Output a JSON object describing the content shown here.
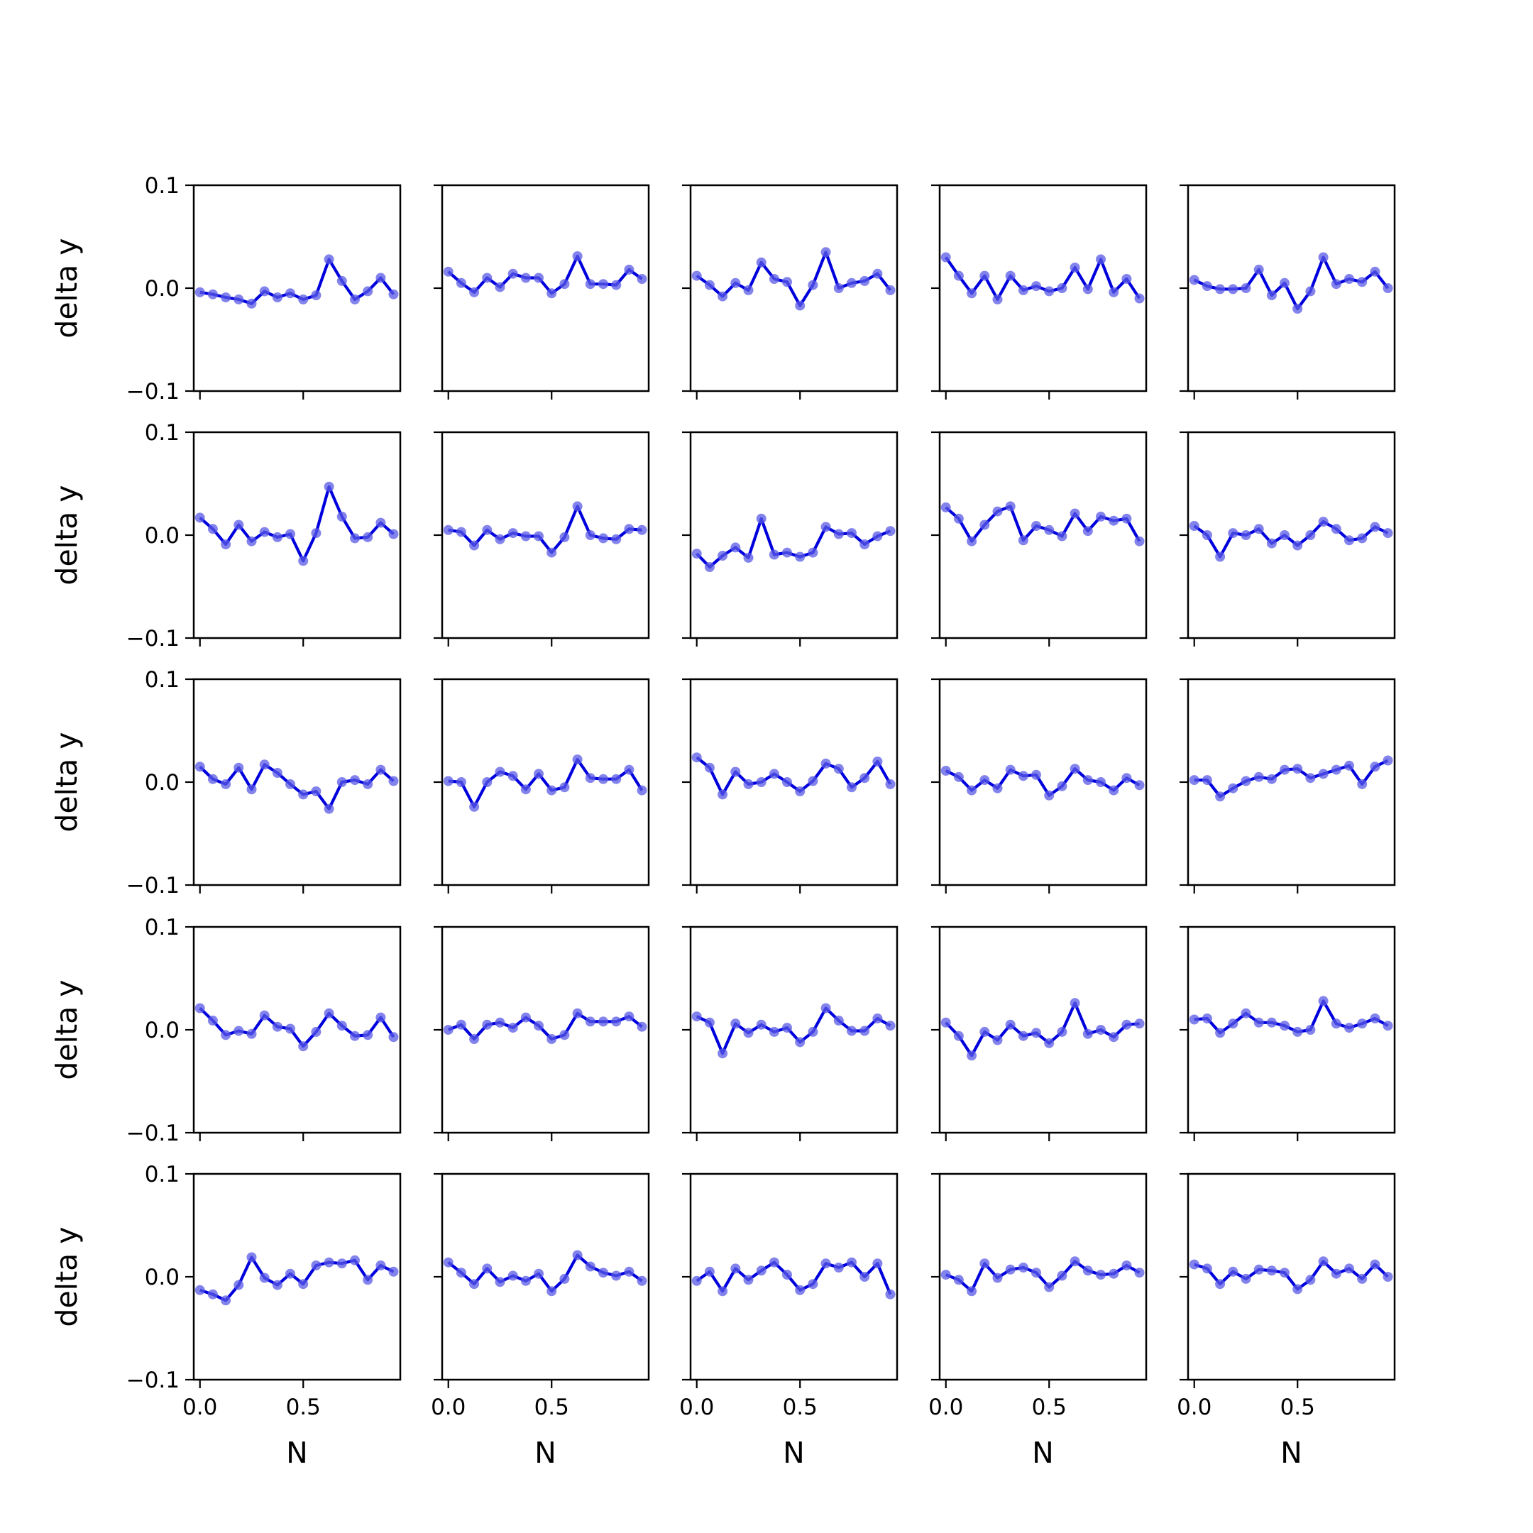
{
  "chart_data": [
    {
      "type": "line",
      "row": 0,
      "col": 0,
      "x": [
        0,
        0.0625,
        0.125,
        0.1875,
        0.25,
        0.3125,
        0.375,
        0.4375,
        0.5,
        0.5625,
        0.625,
        0.6875,
        0.75,
        0.8125,
        0.875,
        0.9375
      ],
      "values": [
        -0.004,
        -0.006,
        -0.009,
        -0.011,
        -0.015,
        -0.003,
        -0.009,
        -0.005,
        -0.011,
        -0.007,
        0.028,
        0.007,
        -0.011,
        -0.003,
        0.01,
        -0.006
      ],
      "xlim": [
        -0.03,
        0.97
      ],
      "ylim": [
        -0.1,
        0.1
      ]
    },
    {
      "type": "line",
      "row": 0,
      "col": 1,
      "x": [
        0,
        0.0625,
        0.125,
        0.1875,
        0.25,
        0.3125,
        0.375,
        0.4375,
        0.5,
        0.5625,
        0.625,
        0.6875,
        0.75,
        0.8125,
        0.875,
        0.9375
      ],
      "values": [
        0.016,
        0.005,
        -0.004,
        0.01,
        0.001,
        0.014,
        0.01,
        0.01,
        -0.005,
        0.004,
        0.031,
        0.004,
        0.004,
        0.003,
        0.018,
        0.009
      ],
      "xlim": [
        -0.03,
        0.97
      ],
      "ylim": [
        -0.1,
        0.1
      ]
    },
    {
      "type": "line",
      "row": 0,
      "col": 2,
      "x": [
        0,
        0.0625,
        0.125,
        0.1875,
        0.25,
        0.3125,
        0.375,
        0.4375,
        0.5,
        0.5625,
        0.625,
        0.6875,
        0.75,
        0.8125,
        0.875,
        0.9375
      ],
      "values": [
        0.012,
        0.003,
        -0.008,
        0.005,
        -0.002,
        0.025,
        0.009,
        0.006,
        -0.017,
        0.003,
        0.035,
        0.0,
        0.005,
        0.007,
        0.014,
        -0.002
      ],
      "xlim": [
        -0.03,
        0.97
      ],
      "ylim": [
        -0.1,
        0.1
      ]
    },
    {
      "type": "line",
      "row": 0,
      "col": 3,
      "x": [
        0,
        0.0625,
        0.125,
        0.1875,
        0.25,
        0.3125,
        0.375,
        0.4375,
        0.5,
        0.5625,
        0.625,
        0.6875,
        0.75,
        0.8125,
        0.875,
        0.9375
      ],
      "values": [
        0.03,
        0.012,
        -0.005,
        0.012,
        -0.011,
        0.012,
        -0.002,
        0.002,
        -0.003,
        0.0,
        0.02,
        -0.001,
        0.028,
        -0.004,
        0.009,
        -0.01
      ],
      "xlim": [
        -0.03,
        0.97
      ],
      "ylim": [
        -0.1,
        0.1
      ]
    },
    {
      "type": "line",
      "row": 0,
      "col": 4,
      "x": [
        0,
        0.0625,
        0.125,
        0.1875,
        0.25,
        0.3125,
        0.375,
        0.4375,
        0.5,
        0.5625,
        0.625,
        0.6875,
        0.75,
        0.8125,
        0.875,
        0.9375
      ],
      "values": [
        0.008,
        0.002,
        -0.001,
        -0.001,
        0.0,
        0.018,
        -0.007,
        0.005,
        -0.02,
        -0.003,
        0.03,
        0.004,
        0.009,
        0.006,
        0.016,
        0.0
      ],
      "xlim": [
        -0.03,
        0.97
      ],
      "ylim": [
        -0.1,
        0.1
      ]
    },
    {
      "type": "line",
      "row": 1,
      "col": 0,
      "x": [
        0,
        0.0625,
        0.125,
        0.1875,
        0.25,
        0.3125,
        0.375,
        0.4375,
        0.5,
        0.5625,
        0.625,
        0.6875,
        0.75,
        0.8125,
        0.875,
        0.9375
      ],
      "values": [
        0.017,
        0.006,
        -0.009,
        0.01,
        -0.006,
        0.003,
        -0.002,
        0.001,
        -0.025,
        0.002,
        0.047,
        0.018,
        -0.003,
        -0.002,
        0.012,
        0.001
      ],
      "xlim": [
        -0.03,
        0.97
      ],
      "ylim": [
        -0.1,
        0.1
      ]
    },
    {
      "type": "line",
      "row": 1,
      "col": 1,
      "x": [
        0,
        0.0625,
        0.125,
        0.1875,
        0.25,
        0.3125,
        0.375,
        0.4375,
        0.5,
        0.5625,
        0.625,
        0.6875,
        0.75,
        0.8125,
        0.875,
        0.9375
      ],
      "values": [
        0.005,
        0.003,
        -0.01,
        0.005,
        -0.004,
        0.002,
        -0.001,
        -0.001,
        -0.017,
        -0.002,
        0.028,
        0.0,
        -0.003,
        -0.004,
        0.006,
        0.005
      ],
      "xlim": [
        -0.03,
        0.97
      ],
      "ylim": [
        -0.1,
        0.1
      ]
    },
    {
      "type": "line",
      "row": 1,
      "col": 2,
      "x": [
        0,
        0.0625,
        0.125,
        0.1875,
        0.25,
        0.3125,
        0.375,
        0.4375,
        0.5,
        0.5625,
        0.625,
        0.6875,
        0.75,
        0.8125,
        0.875,
        0.9375
      ],
      "values": [
        -0.018,
        -0.031,
        -0.02,
        -0.012,
        -0.022,
        0.016,
        -0.019,
        -0.017,
        -0.021,
        -0.017,
        0.008,
        0.001,
        0.002,
        -0.009,
        -0.001,
        0.004
      ],
      "xlim": [
        -0.03,
        0.97
      ],
      "ylim": [
        -0.1,
        0.1
      ]
    },
    {
      "type": "line",
      "row": 1,
      "col": 3,
      "x": [
        0,
        0.0625,
        0.125,
        0.1875,
        0.25,
        0.3125,
        0.375,
        0.4375,
        0.5,
        0.5625,
        0.625,
        0.6875,
        0.75,
        0.8125,
        0.875,
        0.9375
      ],
      "values": [
        0.027,
        0.016,
        -0.006,
        0.01,
        0.023,
        0.028,
        -0.005,
        0.009,
        0.005,
        -0.001,
        0.021,
        0.004,
        0.018,
        0.014,
        0.016,
        -0.006
      ],
      "xlim": [
        -0.03,
        0.97
      ],
      "ylim": [
        -0.1,
        0.1
      ]
    },
    {
      "type": "line",
      "row": 1,
      "col": 4,
      "x": [
        0,
        0.0625,
        0.125,
        0.1875,
        0.25,
        0.3125,
        0.375,
        0.4375,
        0.5,
        0.5625,
        0.625,
        0.6875,
        0.75,
        0.8125,
        0.875,
        0.9375
      ],
      "values": [
        0.009,
        0.0,
        -0.021,
        0.002,
        0.0,
        0.006,
        -0.008,
        0.0,
        -0.01,
        0.0,
        0.013,
        0.006,
        -0.005,
        -0.003,
        0.008,
        0.002
      ],
      "xlim": [
        -0.03,
        0.97
      ],
      "ylim": [
        -0.1,
        0.1
      ]
    },
    {
      "type": "line",
      "row": 2,
      "col": 0,
      "x": [
        0,
        0.0625,
        0.125,
        0.1875,
        0.25,
        0.3125,
        0.375,
        0.4375,
        0.5,
        0.5625,
        0.625,
        0.6875,
        0.75,
        0.8125,
        0.875,
        0.9375
      ],
      "values": [
        0.015,
        0.003,
        -0.002,
        0.014,
        -0.007,
        0.017,
        0.009,
        -0.002,
        -0.012,
        -0.009,
        -0.026,
        0.0,
        0.002,
        -0.002,
        0.012,
        0.001
      ],
      "xlim": [
        -0.03,
        0.97
      ],
      "ylim": [
        -0.1,
        0.1
      ]
    },
    {
      "type": "line",
      "row": 2,
      "col": 1,
      "x": [
        0,
        0.0625,
        0.125,
        0.1875,
        0.25,
        0.3125,
        0.375,
        0.4375,
        0.5,
        0.5625,
        0.625,
        0.6875,
        0.75,
        0.8125,
        0.875,
        0.9375
      ],
      "values": [
        0.001,
        0.0,
        -0.024,
        0.0,
        0.01,
        0.006,
        -0.007,
        0.008,
        -0.008,
        -0.005,
        0.022,
        0.004,
        0.003,
        0.003,
        0.012,
        -0.008
      ],
      "xlim": [
        -0.03,
        0.97
      ],
      "ylim": [
        -0.1,
        0.1
      ]
    },
    {
      "type": "line",
      "row": 2,
      "col": 2,
      "x": [
        0,
        0.0625,
        0.125,
        0.1875,
        0.25,
        0.3125,
        0.375,
        0.4375,
        0.5,
        0.5625,
        0.625,
        0.6875,
        0.75,
        0.8125,
        0.875,
        0.9375
      ],
      "values": [
        0.024,
        0.014,
        -0.012,
        0.01,
        -0.002,
        0.0,
        0.008,
        0.0,
        -0.009,
        0.001,
        0.018,
        0.013,
        -0.005,
        0.004,
        0.02,
        -0.002
      ],
      "xlim": [
        -0.03,
        0.97
      ],
      "ylim": [
        -0.1,
        0.1
      ]
    },
    {
      "type": "line",
      "row": 2,
      "col": 3,
      "x": [
        0,
        0.0625,
        0.125,
        0.1875,
        0.25,
        0.3125,
        0.375,
        0.4375,
        0.5,
        0.5625,
        0.625,
        0.6875,
        0.75,
        0.8125,
        0.875,
        0.9375
      ],
      "values": [
        0.011,
        0.005,
        -0.008,
        0.002,
        -0.006,
        0.012,
        0.006,
        0.007,
        -0.013,
        -0.004,
        0.013,
        0.002,
        0.0,
        -0.008,
        0.004,
        -0.003
      ],
      "xlim": [
        -0.03,
        0.97
      ],
      "ylim": [
        -0.1,
        0.1
      ]
    },
    {
      "type": "line",
      "row": 2,
      "col": 4,
      "x": [
        0,
        0.0625,
        0.125,
        0.1875,
        0.25,
        0.3125,
        0.375,
        0.4375,
        0.5,
        0.5625,
        0.625,
        0.6875,
        0.75,
        0.8125,
        0.875,
        0.9375
      ],
      "values": [
        0.002,
        0.002,
        -0.014,
        -0.006,
        0.001,
        0.005,
        0.003,
        0.012,
        0.013,
        0.004,
        0.008,
        0.012,
        0.016,
        -0.002,
        0.015,
        0.021
      ],
      "xlim": [
        -0.03,
        0.97
      ],
      "ylim": [
        -0.1,
        0.1
      ]
    },
    {
      "type": "line",
      "row": 3,
      "col": 0,
      "x": [
        0,
        0.0625,
        0.125,
        0.1875,
        0.25,
        0.3125,
        0.375,
        0.4375,
        0.5,
        0.5625,
        0.625,
        0.6875,
        0.75,
        0.8125,
        0.875,
        0.9375
      ],
      "values": [
        0.021,
        0.009,
        -0.005,
        -0.001,
        -0.004,
        0.014,
        0.003,
        0.001,
        -0.016,
        -0.002,
        0.016,
        0.004,
        -0.006,
        -0.005,
        0.012,
        -0.007
      ],
      "xlim": [
        -0.03,
        0.97
      ],
      "ylim": [
        -0.1,
        0.1
      ]
    },
    {
      "type": "line",
      "row": 3,
      "col": 1,
      "x": [
        0,
        0.0625,
        0.125,
        0.1875,
        0.25,
        0.3125,
        0.375,
        0.4375,
        0.5,
        0.5625,
        0.625,
        0.6875,
        0.75,
        0.8125,
        0.875,
        0.9375
      ],
      "values": [
        0.0,
        0.005,
        -0.009,
        0.005,
        0.007,
        0.002,
        0.012,
        0.004,
        -0.009,
        -0.005,
        0.016,
        0.008,
        0.008,
        0.008,
        0.013,
        0.003
      ],
      "xlim": [
        -0.03,
        0.97
      ],
      "ylim": [
        -0.1,
        0.1
      ]
    },
    {
      "type": "line",
      "row": 3,
      "col": 2,
      "x": [
        0,
        0.0625,
        0.125,
        0.1875,
        0.25,
        0.3125,
        0.375,
        0.4375,
        0.5,
        0.5625,
        0.625,
        0.6875,
        0.75,
        0.8125,
        0.875,
        0.9375
      ],
      "values": [
        0.013,
        0.007,
        -0.023,
        0.006,
        -0.003,
        0.005,
        -0.002,
        0.002,
        -0.012,
        -0.002,
        0.021,
        0.009,
        -0.001,
        -0.001,
        0.011,
        0.004
      ],
      "xlim": [
        -0.03,
        0.97
      ],
      "ylim": [
        -0.1,
        0.1
      ]
    },
    {
      "type": "line",
      "row": 3,
      "col": 3,
      "x": [
        0,
        0.0625,
        0.125,
        0.1875,
        0.25,
        0.3125,
        0.375,
        0.4375,
        0.5,
        0.5625,
        0.625,
        0.6875,
        0.75,
        0.8125,
        0.875,
        0.9375
      ],
      "values": [
        0.007,
        -0.006,
        -0.025,
        -0.002,
        -0.01,
        0.005,
        -0.006,
        -0.003,
        -0.013,
        -0.002,
        0.026,
        -0.004,
        0.0,
        -0.007,
        0.005,
        0.006
      ],
      "xlim": [
        -0.03,
        0.97
      ],
      "ylim": [
        -0.1,
        0.1
      ]
    },
    {
      "type": "line",
      "row": 3,
      "col": 4,
      "x": [
        0,
        0.0625,
        0.125,
        0.1875,
        0.25,
        0.3125,
        0.375,
        0.4375,
        0.5,
        0.5625,
        0.625,
        0.6875,
        0.75,
        0.8125,
        0.875,
        0.9375
      ],
      "values": [
        0.01,
        0.011,
        -0.003,
        0.006,
        0.016,
        0.007,
        0.007,
        0.004,
        -0.002,
        0.0,
        0.028,
        0.006,
        0.002,
        0.006,
        0.011,
        0.004
      ],
      "xlim": [
        -0.03,
        0.97
      ],
      "ylim": [
        -0.1,
        0.1
      ]
    },
    {
      "type": "line",
      "row": 4,
      "col": 0,
      "x": [
        0,
        0.0625,
        0.125,
        0.1875,
        0.25,
        0.3125,
        0.375,
        0.4375,
        0.5,
        0.5625,
        0.625,
        0.6875,
        0.75,
        0.8125,
        0.875,
        0.9375
      ],
      "values": [
        -0.013,
        -0.017,
        -0.023,
        -0.008,
        0.019,
        -0.001,
        -0.008,
        0.003,
        -0.007,
        0.011,
        0.014,
        0.013,
        0.016,
        -0.003,
        0.011,
        0.005
      ],
      "xlim": [
        -0.03,
        0.97
      ],
      "ylim": [
        -0.1,
        0.1
      ]
    },
    {
      "type": "line",
      "row": 4,
      "col": 1,
      "x": [
        0,
        0.0625,
        0.125,
        0.1875,
        0.25,
        0.3125,
        0.375,
        0.4375,
        0.5,
        0.5625,
        0.625,
        0.6875,
        0.75,
        0.8125,
        0.875,
        0.9375
      ],
      "values": [
        0.014,
        0.004,
        -0.007,
        0.008,
        -0.005,
        0.001,
        -0.004,
        0.003,
        -0.014,
        -0.002,
        0.021,
        0.01,
        0.004,
        0.001,
        0.005,
        -0.004
      ],
      "xlim": [
        -0.03,
        0.97
      ],
      "ylim": [
        -0.1,
        0.1
      ]
    },
    {
      "type": "line",
      "row": 4,
      "col": 2,
      "x": [
        0,
        0.0625,
        0.125,
        0.1875,
        0.25,
        0.3125,
        0.375,
        0.4375,
        0.5,
        0.5625,
        0.625,
        0.6875,
        0.75,
        0.8125,
        0.875,
        0.9375
      ],
      "values": [
        -0.004,
        0.005,
        -0.014,
        0.008,
        -0.003,
        0.006,
        0.014,
        0.002,
        -0.013,
        -0.007,
        0.013,
        0.009,
        0.014,
        0.0,
        0.013,
        -0.017
      ],
      "xlim": [
        -0.03,
        0.97
      ],
      "ylim": [
        -0.1,
        0.1
      ]
    },
    {
      "type": "line",
      "row": 4,
      "col": 3,
      "x": [
        0,
        0.0625,
        0.125,
        0.1875,
        0.25,
        0.3125,
        0.375,
        0.4375,
        0.5,
        0.5625,
        0.625,
        0.6875,
        0.75,
        0.8125,
        0.875,
        0.9375
      ],
      "values": [
        0.002,
        -0.003,
        -0.014,
        0.013,
        -0.001,
        0.007,
        0.009,
        0.004,
        -0.01,
        0.001,
        0.015,
        0.006,
        0.002,
        0.003,
        0.011,
        0.004
      ],
      "xlim": [
        -0.03,
        0.97
      ],
      "ylim": [
        -0.1,
        0.1
      ]
    },
    {
      "type": "line",
      "row": 4,
      "col": 4,
      "x": [
        0,
        0.0625,
        0.125,
        0.1875,
        0.25,
        0.3125,
        0.375,
        0.4375,
        0.5,
        0.5625,
        0.625,
        0.6875,
        0.75,
        0.8125,
        0.875,
        0.9375
      ],
      "values": [
        0.012,
        0.008,
        -0.007,
        0.005,
        -0.002,
        0.007,
        0.006,
        0.004,
        -0.012,
        -0.003,
        0.015,
        0.003,
        0.008,
        -0.002,
        0.012,
        0.0
      ],
      "xlim": [
        -0.03,
        0.97
      ],
      "ylim": [
        -0.1,
        0.1
      ]
    }
  ],
  "axes": {
    "xlabel": "N",
    "ylabel": "delta y",
    "x_ticks": [
      0.0,
      0.5
    ],
    "x_tick_labels": [
      "0.0",
      "0.5"
    ],
    "y_ticks": [
      0.1,
      0.0,
      -0.1
    ],
    "y_tick_labels": [
      "0.1",
      "0.0",
      "−0.1"
    ]
  },
  "colors": {
    "line": "#0000dd",
    "marker": "#5a5ae6",
    "axes": "#000000"
  }
}
